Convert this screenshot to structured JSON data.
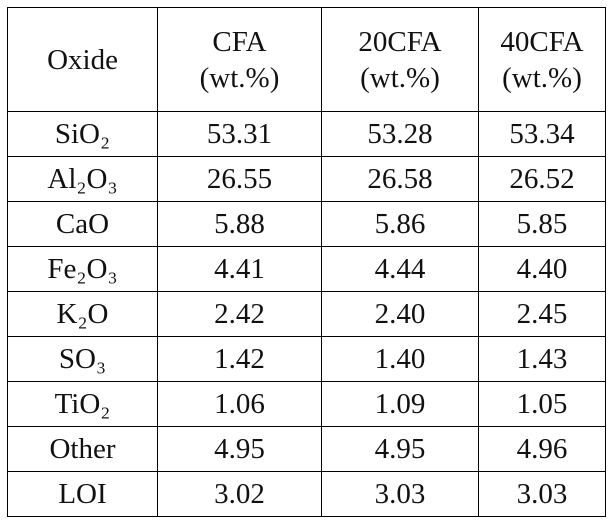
{
  "table": {
    "header": [
      [
        "Oxide"
      ],
      [
        "CFA",
        "(wt.%)"
      ],
      [
        "20CFA",
        "(wt.%)"
      ],
      [
        "40CFA",
        "(wt.%)"
      ]
    ],
    "rows": [
      [
        "SiO₂",
        "53.31",
        "53.28",
        "53.34"
      ],
      [
        "Al₂O₃",
        "26.55",
        "26.58",
        "26.52"
      ],
      [
        "CaO",
        "5.88",
        "5.86",
        "5.85"
      ],
      [
        "Fe₂O₃",
        "4.41",
        "4.44",
        "4.40"
      ],
      [
        "K₂O",
        "2.42",
        "2.40",
        "2.45"
      ],
      [
        "SO₃",
        "1.42",
        "1.40",
        "1.43"
      ],
      [
        "TiO₂",
        "1.06",
        "1.09",
        "1.05"
      ],
      [
        "Other",
        "4.95",
        "4.95",
        "4.96"
      ],
      [
        "LOI",
        "3.02",
        "3.03",
        "3.03"
      ]
    ]
  }
}
